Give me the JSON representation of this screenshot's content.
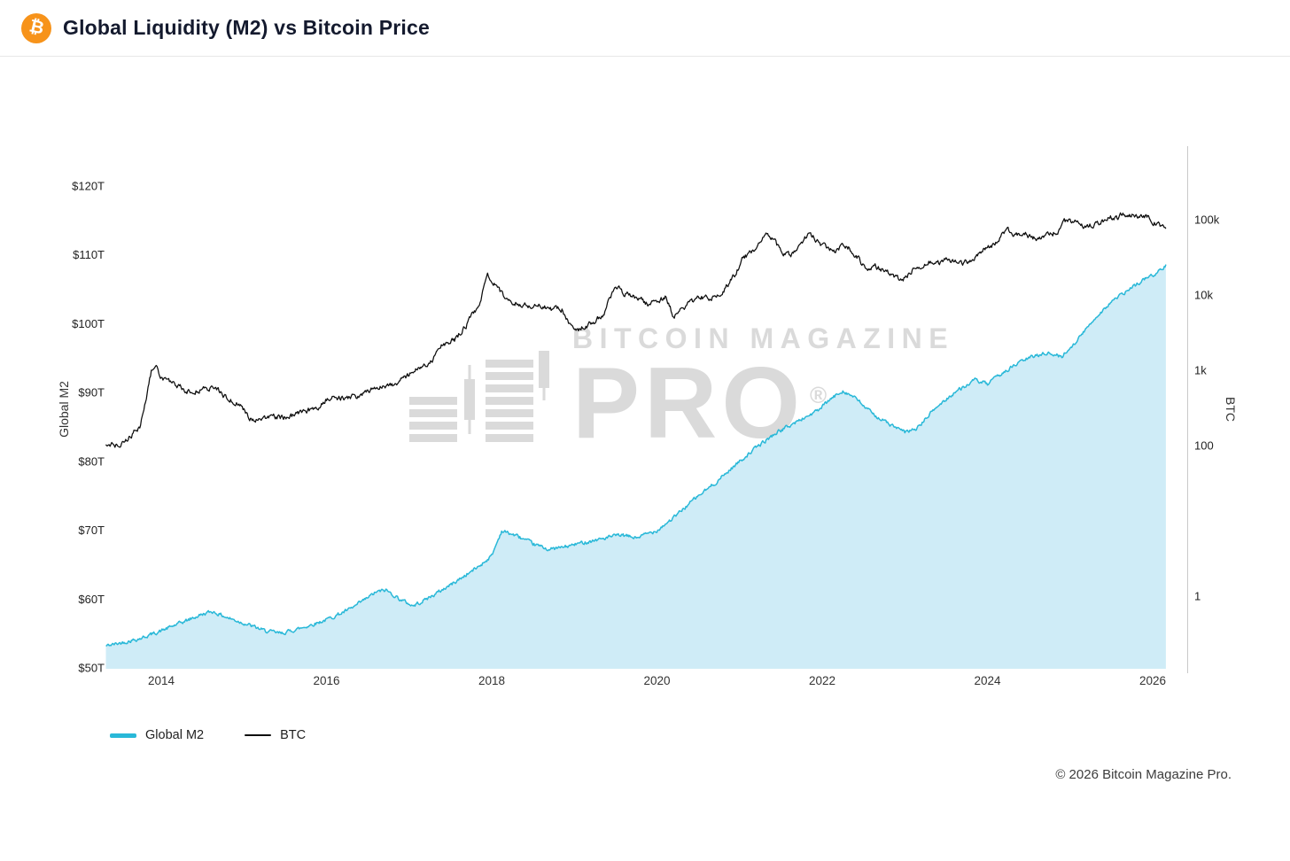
{
  "header": {
    "title": "Global Liquidity (M2) vs Bitcoin Price"
  },
  "watermark": {
    "line1": "BITCOIN MAGAZINE",
    "line2": "PRO",
    "reg": "®"
  },
  "footer": {
    "copyright": "© 2026 Bitcoin Magazine Pro."
  },
  "chart_data": {
    "type": "line",
    "title": "Global Liquidity (M2) vs Bitcoin Price",
    "grid": false,
    "legend_position": "bottom-left",
    "x_axis": {
      "min": 2013.33,
      "max": 2026.35,
      "ticks": [
        2014,
        2016,
        2018,
        2020,
        2022,
        2024,
        2026
      ]
    },
    "left_axis": {
      "label": "Global M2",
      "scale": "linear",
      "unit": "USD trillions",
      "range": [
        50,
        126
      ],
      "ticks": [
        {
          "value": 120,
          "label": "$120T"
        },
        {
          "value": 110,
          "label": "$110T"
        },
        {
          "value": 100,
          "label": "$100T"
        },
        {
          "value": 90,
          "label": "$90T"
        },
        {
          "value": 80,
          "label": "$80T"
        },
        {
          "value": 70,
          "label": "$70T"
        },
        {
          "value": 60,
          "label": "$60T"
        },
        {
          "value": 50,
          "label": "$50T"
        }
      ]
    },
    "right_axis": {
      "label": "BTC",
      "scale": "log",
      "unit": "USD",
      "range": [
        0.1,
        900000
      ],
      "ticks": [
        {
          "value": 100000,
          "label": "100k"
        },
        {
          "value": 10000,
          "label": "10k"
        },
        {
          "value": 1000,
          "label": "1k"
        },
        {
          "value": 100,
          "label": "100"
        },
        {
          "value": 1,
          "label": "1"
        }
      ]
    },
    "series": [
      {
        "name": "Global M2",
        "axis": "left",
        "type": "area",
        "color": "#29b8d8",
        "fill": "#cfecf7",
        "points": [
          [
            2013.33,
            53.2
          ],
          [
            2013.5,
            53.6
          ],
          [
            2013.75,
            54.3
          ],
          [
            2014.0,
            55.4
          ],
          [
            2014.25,
            56.6
          ],
          [
            2014.5,
            57.8
          ],
          [
            2014.62,
            58.2
          ],
          [
            2014.8,
            57.3
          ],
          [
            2015.0,
            56.5
          ],
          [
            2015.25,
            55.4
          ],
          [
            2015.45,
            55.0
          ],
          [
            2015.7,
            55.8
          ],
          [
            2016.0,
            57.0
          ],
          [
            2016.3,
            58.6
          ],
          [
            2016.6,
            61.0
          ],
          [
            2016.72,
            61.3
          ],
          [
            2016.9,
            59.9
          ],
          [
            2017.05,
            59.0
          ],
          [
            2017.3,
            60.6
          ],
          [
            2017.6,
            62.8
          ],
          [
            2017.85,
            64.8
          ],
          [
            2018.0,
            66.3
          ],
          [
            2018.12,
            69.9
          ],
          [
            2018.3,
            69.2
          ],
          [
            2018.5,
            68.0
          ],
          [
            2018.7,
            67.2
          ],
          [
            2018.9,
            67.6
          ],
          [
            2019.1,
            68.2
          ],
          [
            2019.35,
            68.8
          ],
          [
            2019.55,
            69.3
          ],
          [
            2019.75,
            68.9
          ],
          [
            2020.0,
            70.0
          ],
          [
            2020.2,
            71.8
          ],
          [
            2020.45,
            74.5
          ],
          [
            2020.7,
            76.8
          ],
          [
            2020.95,
            79.5
          ],
          [
            2021.2,
            82.0
          ],
          [
            2021.45,
            84.2
          ],
          [
            2021.7,
            85.8
          ],
          [
            2021.95,
            87.4
          ],
          [
            2022.1,
            89.0
          ],
          [
            2022.25,
            90.3
          ],
          [
            2022.4,
            89.2
          ],
          [
            2022.6,
            87.0
          ],
          [
            2022.8,
            85.5
          ],
          [
            2023.0,
            84.2
          ],
          [
            2023.15,
            84.8
          ],
          [
            2023.35,
            87.5
          ],
          [
            2023.6,
            90.0
          ],
          [
            2023.85,
            91.8
          ],
          [
            2024.0,
            91.2
          ],
          [
            2024.2,
            93.0
          ],
          [
            2024.45,
            94.8
          ],
          [
            2024.7,
            95.8
          ],
          [
            2024.9,
            95.2
          ],
          [
            2025.1,
            97.8
          ],
          [
            2025.3,
            100.8
          ],
          [
            2025.5,
            103.2
          ],
          [
            2025.7,
            104.8
          ],
          [
            2025.9,
            106.5
          ],
          [
            2026.05,
            107.3
          ],
          [
            2026.16,
            108.6
          ]
        ]
      },
      {
        "name": "BTC",
        "axis": "right",
        "type": "line",
        "color": "#0d0d0d",
        "points": [
          [
            2013.33,
            110
          ],
          [
            2013.45,
            100
          ],
          [
            2013.6,
            125
          ],
          [
            2013.75,
            180
          ],
          [
            2013.88,
            950
          ],
          [
            2013.93,
            1150
          ],
          [
            2014.0,
            820
          ],
          [
            2014.15,
            650
          ],
          [
            2014.35,
            500
          ],
          [
            2014.5,
            560
          ],
          [
            2014.65,
            590
          ],
          [
            2014.8,
            420
          ],
          [
            2014.95,
            350
          ],
          [
            2015.1,
            215
          ],
          [
            2015.3,
            245
          ],
          [
            2015.5,
            235
          ],
          [
            2015.7,
            270
          ],
          [
            2015.9,
            330
          ],
          [
            2016.0,
            420
          ],
          [
            2016.2,
            430
          ],
          [
            2016.4,
            450
          ],
          [
            2016.6,
            610
          ],
          [
            2016.8,
            650
          ],
          [
            2016.95,
            780
          ],
          [
            2017.1,
            1050
          ],
          [
            2017.25,
            1200
          ],
          [
            2017.4,
            2200
          ],
          [
            2017.55,
            2500
          ],
          [
            2017.7,
            4100
          ],
          [
            2017.85,
            7500
          ],
          [
            2017.95,
            19000
          ],
          [
            2018.05,
            13500
          ],
          [
            2018.15,
            9200
          ],
          [
            2018.3,
            7800
          ],
          [
            2018.45,
            7100
          ],
          [
            2018.55,
            7600
          ],
          [
            2018.7,
            6400
          ],
          [
            2018.85,
            6400
          ],
          [
            2018.95,
            3900
          ],
          [
            2019.05,
            3600
          ],
          [
            2019.2,
            4100
          ],
          [
            2019.35,
            5600
          ],
          [
            2019.5,
            12800
          ],
          [
            2019.6,
            10800
          ],
          [
            2019.75,
            9500
          ],
          [
            2019.9,
            7400
          ],
          [
            2020.0,
            8200
          ],
          [
            2020.1,
            9400
          ],
          [
            2020.2,
            5200
          ],
          [
            2020.35,
            7100
          ],
          [
            2020.5,
            9300
          ],
          [
            2020.65,
            9200
          ],
          [
            2020.8,
            11500
          ],
          [
            2020.95,
            19000
          ],
          [
            2021.05,
            32000
          ],
          [
            2021.15,
            37000
          ],
          [
            2021.27,
            57000
          ],
          [
            2021.34,
            62500
          ],
          [
            2021.42,
            54000
          ],
          [
            2021.52,
            34000
          ],
          [
            2021.62,
            33500
          ],
          [
            2021.72,
            42000
          ],
          [
            2021.84,
            66500
          ],
          [
            2021.95,
            51000
          ],
          [
            2022.05,
            42000
          ],
          [
            2022.15,
            39000
          ],
          [
            2022.25,
            47000
          ],
          [
            2022.35,
            40000
          ],
          [
            2022.45,
            30000
          ],
          [
            2022.55,
            20500
          ],
          [
            2022.65,
            23500
          ],
          [
            2022.8,
            19500
          ],
          [
            2022.92,
            16500
          ],
          [
            2023.0,
            16700
          ],
          [
            2023.1,
            22500
          ],
          [
            2023.2,
            24500
          ],
          [
            2023.3,
            27500
          ],
          [
            2023.42,
            26500
          ],
          [
            2023.52,
            30000
          ],
          [
            2023.65,
            26000
          ],
          [
            2023.78,
            27500
          ],
          [
            2023.9,
            37000
          ],
          [
            2024.0,
            43500
          ],
          [
            2024.1,
            48000
          ],
          [
            2024.18,
            68000
          ],
          [
            2024.25,
            70500
          ],
          [
            2024.35,
            62000
          ],
          [
            2024.45,
            66000
          ],
          [
            2024.55,
            58000
          ],
          [
            2024.65,
            55000
          ],
          [
            2024.75,
            64000
          ],
          [
            2024.85,
            68000
          ],
          [
            2024.93,
            96000
          ],
          [
            2025.0,
            97000
          ],
          [
            2025.08,
            92000
          ],
          [
            2025.18,
            81000
          ],
          [
            2025.28,
            84000
          ],
          [
            2025.38,
            95000
          ],
          [
            2025.46,
            108000
          ],
          [
            2025.56,
            104000
          ],
          [
            2025.64,
            120000
          ],
          [
            2025.72,
            115000
          ],
          [
            2025.8,
            112000
          ],
          [
            2025.88,
            110000
          ],
          [
            2025.96,
            103000
          ],
          [
            2026.05,
            88000
          ],
          [
            2026.16,
            76000
          ]
        ]
      }
    ]
  }
}
